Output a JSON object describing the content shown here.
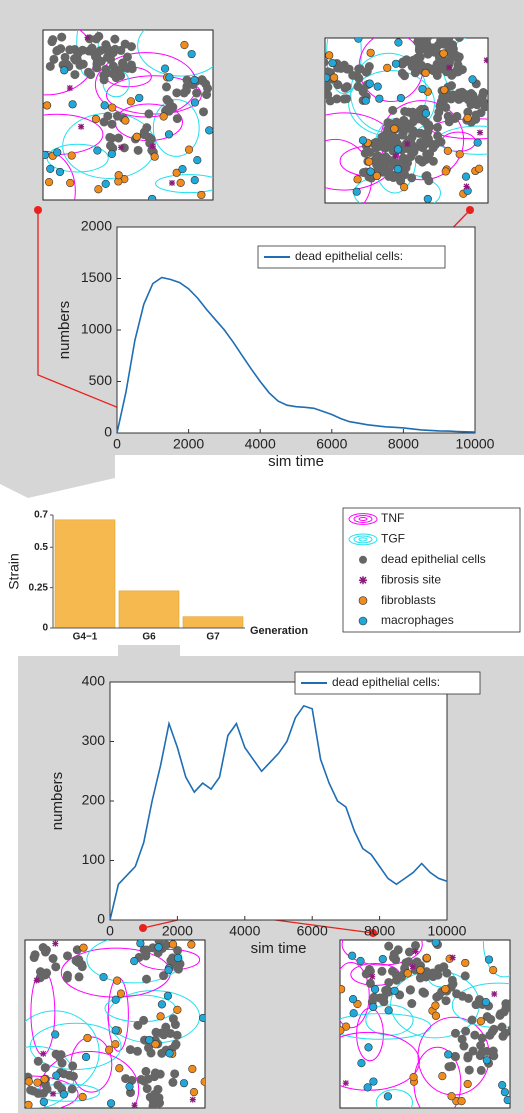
{
  "chart_data": [
    {
      "type": "line",
      "xlabel": "sim time",
      "ylabel": "numbers",
      "xlim": [
        0,
        10000
      ],
      "xticks": [
        0,
        2000,
        4000,
        6000,
        8000,
        10000
      ],
      "ylim": [
        0,
        2000
      ],
      "yticks": [
        0,
        500,
        1000,
        1500,
        2000
      ],
      "x": [
        0,
        250,
        500,
        750,
        1000,
        1250,
        1500,
        1750,
        2000,
        2250,
        2500,
        2750,
        3000,
        3250,
        3500,
        3750,
        4000,
        4250,
        4500,
        4750,
        5000,
        5250,
        5500,
        5750,
        6000,
        6250,
        6500,
        6750,
        7000,
        7250,
        7500,
        7750,
        8000,
        8250,
        8500,
        8750,
        9000,
        9250,
        9500,
        9750,
        10000
      ],
      "series": [
        {
          "name": "dead epithelial cells:",
          "color": "#1f6db3",
          "values": [
            0,
            400,
            900,
            1250,
            1450,
            1510,
            1490,
            1460,
            1400,
            1310,
            1200,
            1100,
            1000,
            880,
            750,
            620,
            500,
            390,
            310,
            270,
            255,
            250,
            240,
            210,
            180,
            140,
            110,
            95,
            80,
            70,
            60,
            55,
            50,
            40,
            30,
            25,
            20,
            18,
            15,
            12,
            10
          ]
        }
      ]
    },
    {
      "type": "bar",
      "ylabel": "Strain",
      "xlabel": "Generation",
      "categories": [
        "G4−1",
        "G6",
        "G7"
      ],
      "values": [
        0.67,
        0.23,
        0.07
      ],
      "color": "#f5b94f",
      "ylim": [
        0,
        0.7
      ],
      "yticks": [
        0,
        0.25,
        0.5,
        0.7
      ]
    },
    {
      "type": "line",
      "xlabel": "sim time",
      "ylabel": "numbers",
      "xlim": [
        0,
        10000
      ],
      "xticks": [
        0,
        2000,
        4000,
        6000,
        8000,
        10000
      ],
      "ylim": [
        0,
        400
      ],
      "yticks": [
        0,
        100,
        200,
        300,
        400
      ],
      "x": [
        0,
        250,
        500,
        750,
        1000,
        1250,
        1500,
        1750,
        2000,
        2250,
        2500,
        2750,
        3000,
        3250,
        3500,
        3750,
        4000,
        4250,
        4500,
        4750,
        5000,
        5250,
        5500,
        5750,
        6000,
        6250,
        6500,
        6750,
        7000,
        7250,
        7500,
        7750,
        8000,
        8250,
        8500,
        8750,
        9000,
        9250,
        9500,
        9750,
        10000
      ],
      "series": [
        {
          "name": "dead epithelial cells:",
          "color": "#1f6db3",
          "values": [
            0,
            60,
            75,
            90,
            130,
            200,
            260,
            330,
            290,
            240,
            215,
            230,
            220,
            240,
            310,
            330,
            290,
            270,
            250,
            265,
            280,
            300,
            340,
            360,
            355,
            270,
            230,
            200,
            190,
            150,
            120,
            110,
            90,
            70,
            60,
            70,
            80,
            95,
            80,
            70,
            65
          ]
        }
      ]
    }
  ],
  "snapshot_legend": {
    "items": [
      {
        "label": "TNF",
        "color": "#ff00ff"
      },
      {
        "label": "TGF",
        "color": "#22e0ee"
      },
      {
        "label": "dead epithelial cells",
        "color": "#666666"
      },
      {
        "label": "fibrosis site",
        "color": "#8b1a7a"
      },
      {
        "label": "fibroblasts",
        "color": "#f08c1e"
      },
      {
        "label": "macrophages",
        "color": "#22a8d8"
      }
    ]
  }
}
